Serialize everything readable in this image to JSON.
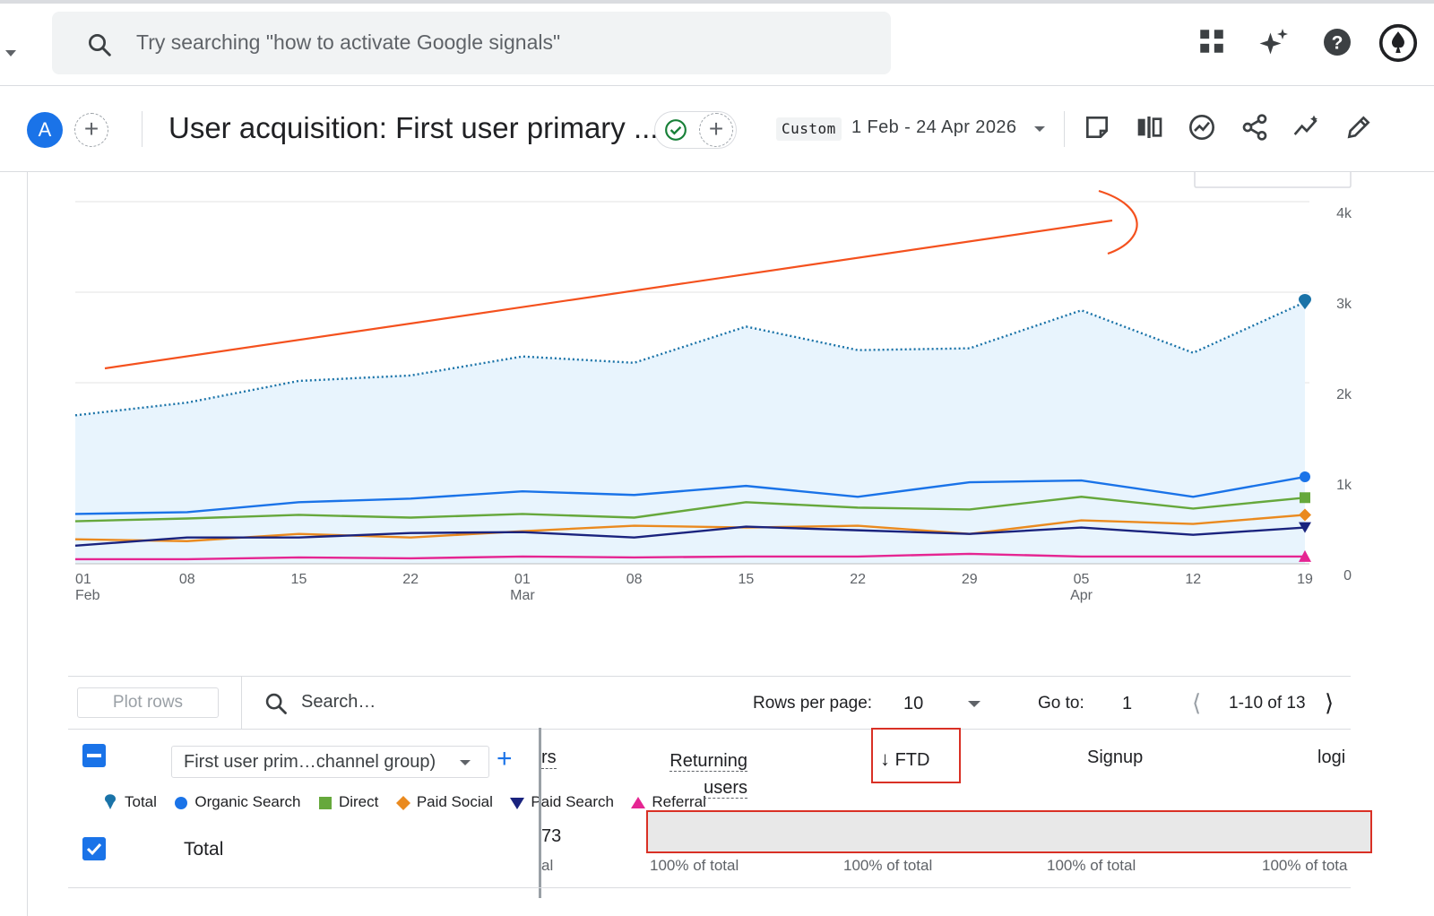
{
  "search": {
    "placeholder": "Try searching \"how to activate Google signals\""
  },
  "topbar_icons": [
    "apps-grid-icon",
    "sparkle-icon",
    "help-icon",
    "account-icon"
  ],
  "header": {
    "avatar_letter": "A",
    "report_title": "User acquisition: First user primary ...",
    "date_chip": "Custom",
    "date_range": "1 Feb - 24 Apr 2026",
    "toolbar_icons": [
      "note-icon",
      "compare-icon",
      "insights-icon",
      "share-icon",
      "trend-icon",
      "edit-icon"
    ]
  },
  "chart_data": {
    "type": "line",
    "x": [
      "01 Feb",
      "08",
      "15",
      "22",
      "01 Mar",
      "08",
      "15",
      "22",
      "29",
      "05 Apr",
      "12",
      "19"
    ],
    "x_ticks": [
      {
        "label": "01",
        "sub": "Feb"
      },
      {
        "label": "08",
        "sub": ""
      },
      {
        "label": "15",
        "sub": ""
      },
      {
        "label": "22",
        "sub": ""
      },
      {
        "label": "01",
        "sub": "Mar"
      },
      {
        "label": "08",
        "sub": ""
      },
      {
        "label": "15",
        "sub": ""
      },
      {
        "label": "22",
        "sub": ""
      },
      {
        "label": "29",
        "sub": ""
      },
      {
        "label": "05",
        "sub": "Apr"
      },
      {
        "label": "12",
        "sub": ""
      },
      {
        "label": "19",
        "sub": ""
      }
    ],
    "y_ticks": [
      "0",
      "1k",
      "2k",
      "3k",
      "4k"
    ],
    "ylim": [
      0,
      4000
    ],
    "series": [
      {
        "name": "Total",
        "style": "dotted-area",
        "color": "#1a73a8",
        "marker": "pin",
        "values": [
          1640,
          1780,
          2020,
          2080,
          2290,
          2220,
          2620,
          2360,
          2380,
          2800,
          2330,
          2890
        ]
      },
      {
        "name": "Organic Search",
        "color": "#1a73e8",
        "marker": "circle",
        "values": [
          550,
          570,
          680,
          720,
          800,
          760,
          860,
          740,
          900,
          920,
          740,
          960
        ]
      },
      {
        "name": "Direct",
        "color": "#66a83c",
        "marker": "square",
        "values": [
          470,
          500,
          540,
          510,
          550,
          510,
          680,
          620,
          600,
          740,
          610,
          730
        ]
      },
      {
        "name": "Paid Social",
        "color": "#ea8a1f",
        "marker": "diamond",
        "values": [
          270,
          250,
          330,
          290,
          360,
          420,
          400,
          420,
          330,
          480,
          440,
          540
        ]
      },
      {
        "name": "Paid Search",
        "color": "#1a237e",
        "marker": "triangle-down",
        "values": [
          200,
          290,
          290,
          340,
          350,
          290,
          410,
          370,
          330,
          400,
          320,
          400
        ]
      },
      {
        "name": "Referral",
        "color": "#e52592",
        "marker": "triangle-up",
        "values": [
          50,
          50,
          70,
          60,
          80,
          70,
          80,
          80,
          110,
          80,
          80,
          80
        ]
      }
    ],
    "annotation": "hand-drawn red upward trend arrow",
    "grid": true,
    "legend_position": "bottom-left"
  },
  "table_toolbar": {
    "plot_rows": "Plot rows",
    "search_placeholder": "Search…",
    "rows_per_page_label": "Rows per page:",
    "rows_per_page_value": "10",
    "goto_label": "Go to:",
    "goto_value": "1",
    "page_info": "1-10 of 13"
  },
  "table": {
    "dimension_select": "First user prim…channel group)",
    "headers": {
      "users_partial": "rs",
      "returning_users_line1": "Returning",
      "returning_users_line2": "users",
      "ftd": "FTD",
      "signup": "Signup",
      "login_partial": "logi"
    },
    "total_row": {
      "label": "Total",
      "users_partial": "73",
      "users_pct_partial": "al",
      "returning_pct": "100% of total",
      "ftd_pct": "100% of total",
      "signup_pct": "100% of total",
      "login_pct": "100% of tota"
    }
  }
}
